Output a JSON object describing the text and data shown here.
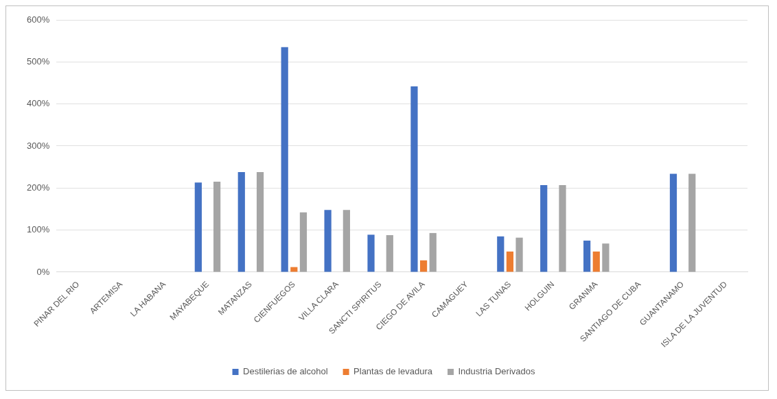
{
  "chart_data": {
    "type": "bar",
    "categories": [
      "PINAR DEL RIO",
      "ARTEMISA",
      "LA HABANA",
      "MAYABEQUE",
      "MATANZAS",
      "CIENFUEGOS",
      "VILLA CLARA",
      "SANCTI SPIRITUS",
      "CIEGO DE AVILA",
      "CAMAGUEY",
      "LAS TUNAS",
      "HOLGUIN",
      "GRANMA",
      "SANTIAGO DE CUBA",
      "GUANTANAMO",
      "ISLA DE LA JUVENTUD"
    ],
    "series": [
      {
        "name": "Destilerias de alcohol",
        "color": "#4472c4",
        "values": [
          null,
          null,
          null,
          213,
          238,
          535,
          148,
          89,
          442,
          null,
          85,
          207,
          75,
          null,
          234,
          null
        ]
      },
      {
        "name": "Plantas de levadura",
        "color": "#ed7d31",
        "values": [
          null,
          null,
          null,
          null,
          null,
          12,
          null,
          null,
          28,
          null,
          49,
          null,
          49,
          null,
          null,
          null
        ]
      },
      {
        "name": "Industria Derivados",
        "color": "#a5a5a5",
        "values": [
          null,
          null,
          null,
          215,
          238,
          142,
          148,
          88,
          93,
          null,
          82,
          207,
          68,
          null,
          234,
          null
        ]
      }
    ],
    "ylim": [
      0,
      600
    ],
    "yticks": [
      {
        "value": 0,
        "label": "0%"
      },
      {
        "value": 100,
        "label": "100%"
      },
      {
        "value": 200,
        "label": "200%"
      },
      {
        "value": 300,
        "label": "300%"
      },
      {
        "value": 400,
        "label": "400%"
      },
      {
        "value": 500,
        "label": "500%"
      },
      {
        "value": 600,
        "label": "600%"
      }
    ],
    "grid": "y",
    "legend": "bottom"
  }
}
